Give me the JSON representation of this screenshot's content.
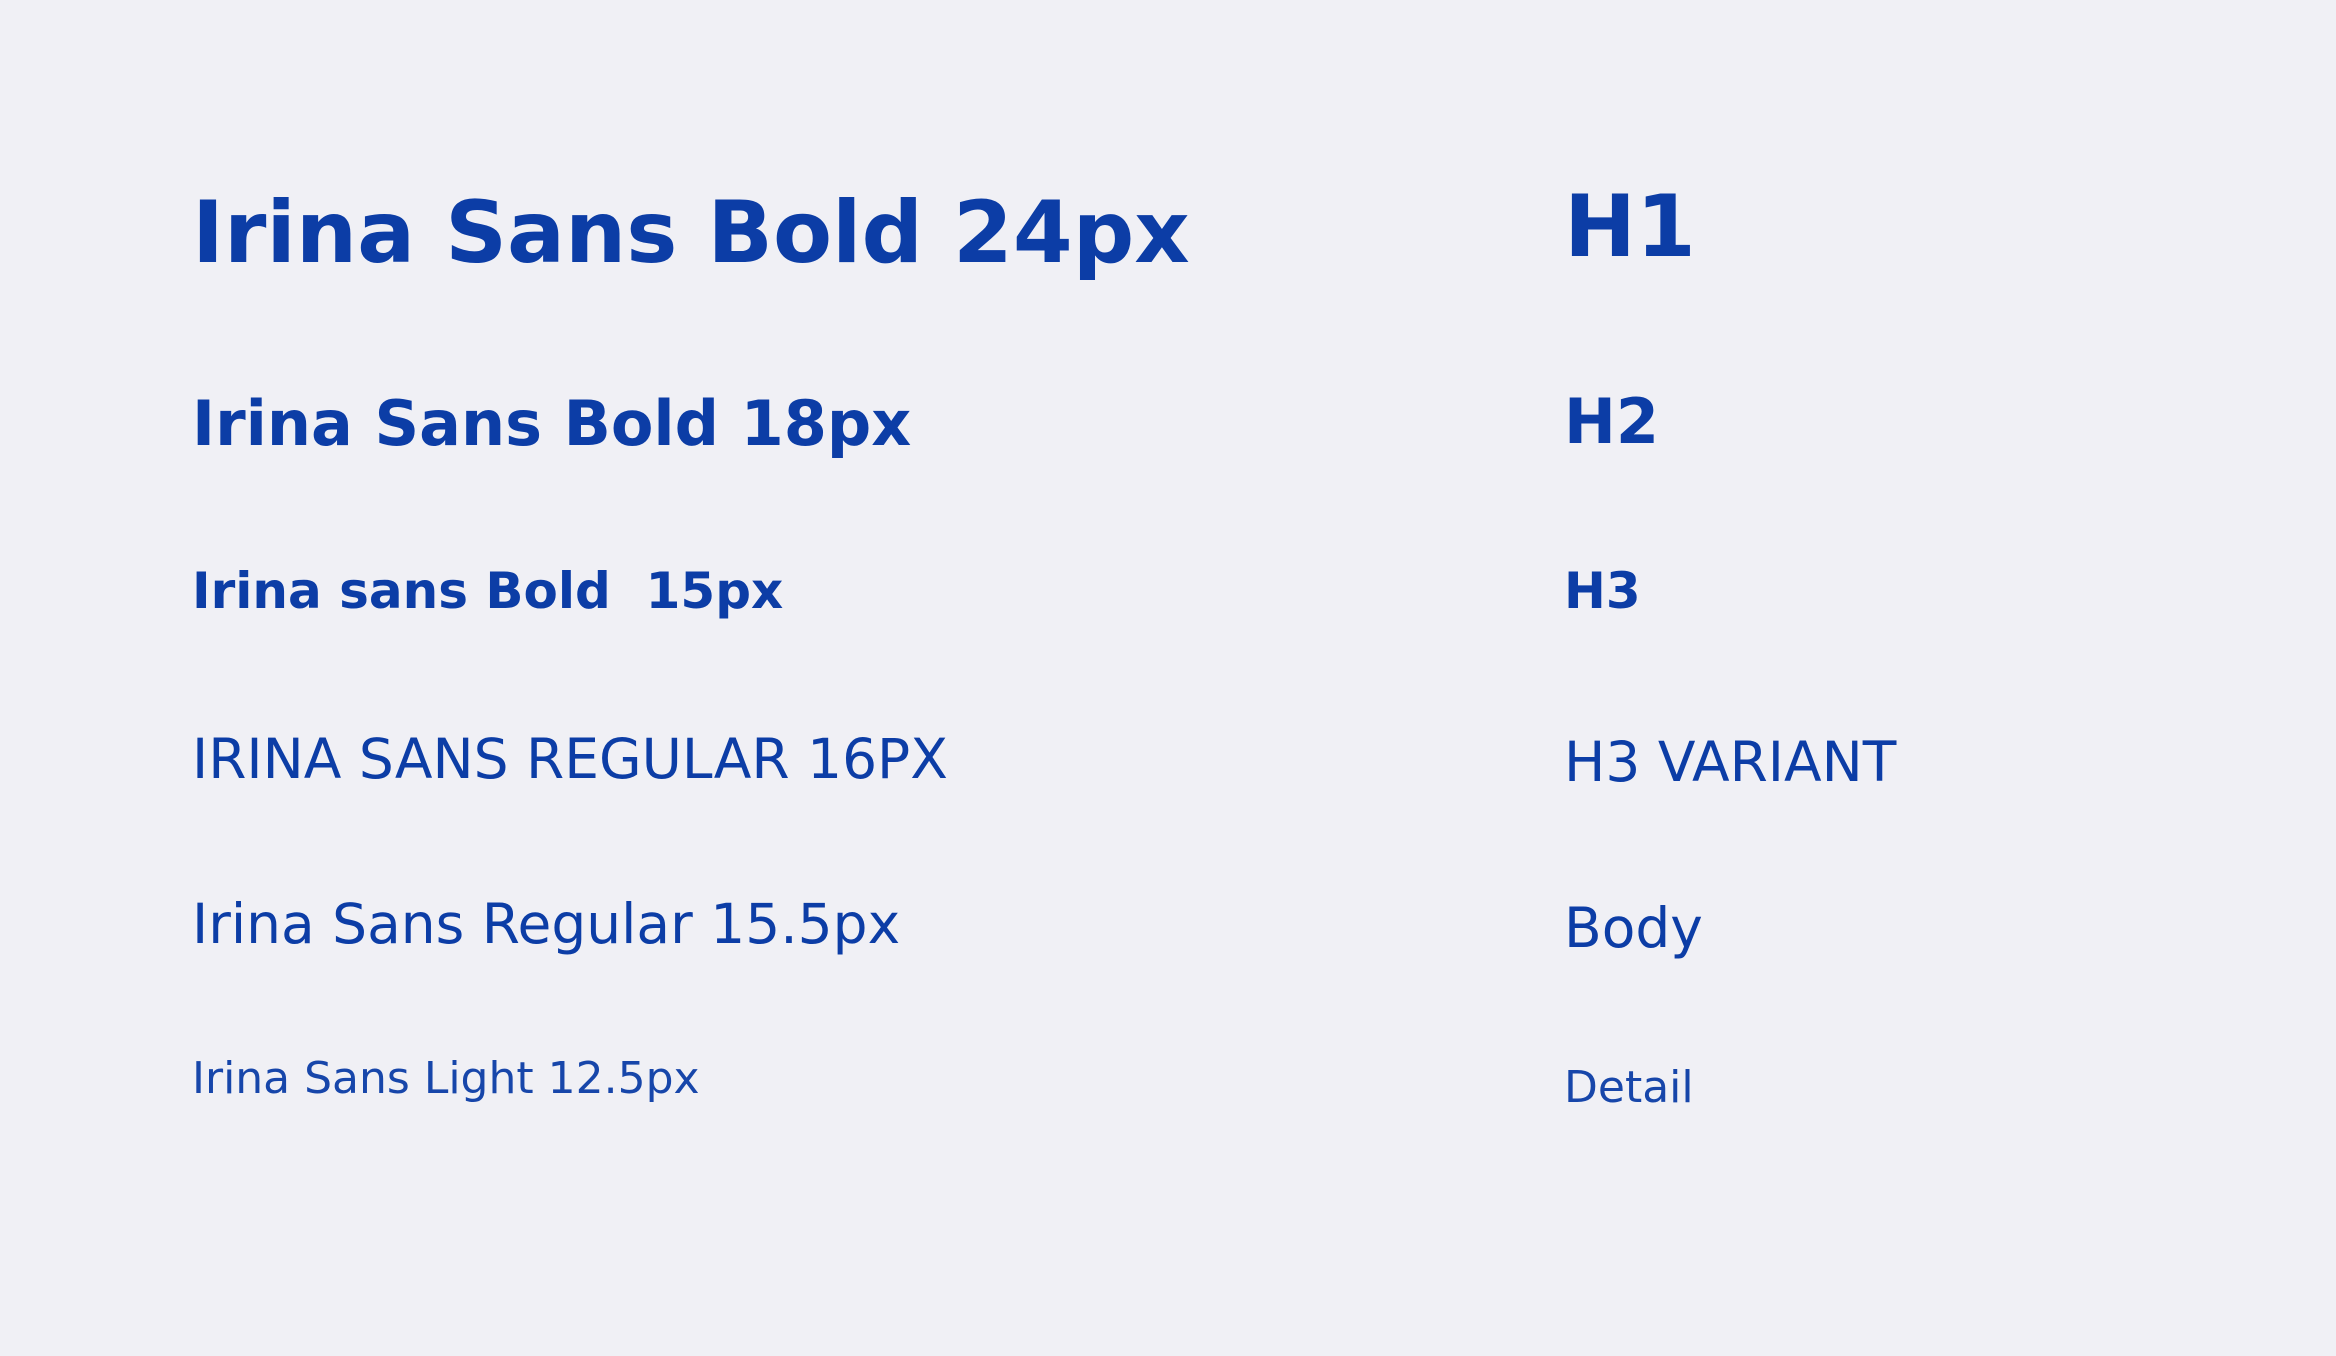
{
  "background_color": "#f0f0f5",
  "text_color": "#0c3da6",
  "rows": [
    {
      "sample": "Irina Sans Bold 24px",
      "label": "H1"
    },
    {
      "sample": "Irina Sans Bold 18px",
      "label": "H2"
    },
    {
      "sample": "Irina sans Bold  15px",
      "label": "H3"
    },
    {
      "sample": "IRINA SANS REGULAR 16PX",
      "label": "H3 VARIANT"
    },
    {
      "sample": "Irina Sans Regular 15.5px",
      "label": "Body"
    },
    {
      "sample": "Irina Sans Light 12.5px",
      "label": "Detail"
    }
  ]
}
